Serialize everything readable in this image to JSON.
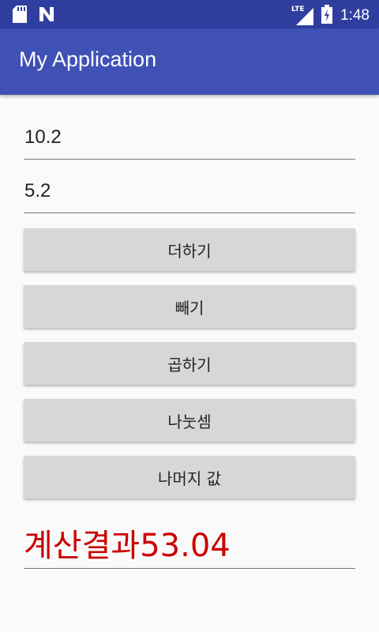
{
  "status_bar": {
    "time": "1:48",
    "network_label": "LTE",
    "icons": [
      "sd-card-icon",
      "n-notification-icon",
      "lte-signal-icon",
      "battery-icon"
    ]
  },
  "app_bar": {
    "title": "My Application",
    "color": "#3f51b5",
    "status_color": "#303f9f"
  },
  "inputs": {
    "first_value": "10.2",
    "second_value": "5.2"
  },
  "buttons": {
    "add": "더하기",
    "subtract": "빼기",
    "multiply": "곱하기",
    "divide": "나눗셈",
    "remainder": "나머지 값"
  },
  "result": {
    "text": "계산결과53.04",
    "color": "#cc0000"
  }
}
